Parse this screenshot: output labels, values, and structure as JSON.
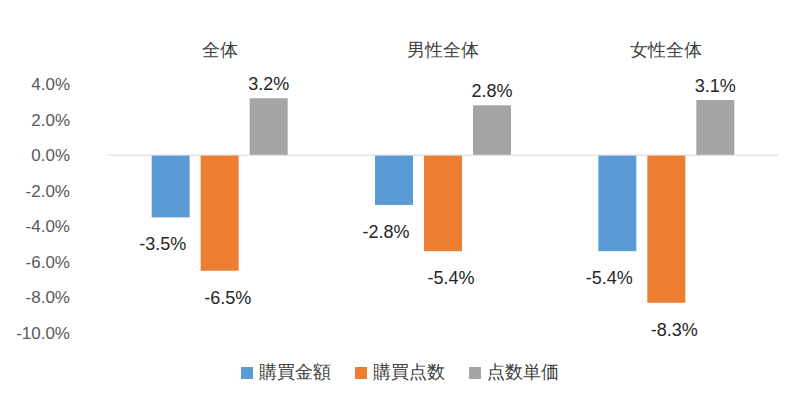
{
  "chart_data": {
    "type": "bar",
    "categories": [
      "全体",
      "男性全体",
      "女性全体"
    ],
    "series": [
      {
        "name": "購買金額",
        "color": "#5b9bd5",
        "values": [
          -3.5,
          -2.8,
          -5.4
        ],
        "value_labels": [
          "-3.5%",
          "-2.8%",
          "-5.4%"
        ]
      },
      {
        "name": "購買点数",
        "color": "#ed7d31",
        "values": [
          -6.5,
          -5.4,
          -8.3
        ],
        "value_labels": [
          "-6.5%",
          "-5.4%",
          "-8.3%"
        ]
      },
      {
        "name": "点数単価",
        "color": "#a5a5a5",
        "values": [
          3.2,
          2.8,
          3.1
        ],
        "value_labels": [
          "3.2%",
          "2.8%",
          "3.1%"
        ]
      }
    ],
    "ylim": [
      -10,
      4
    ],
    "yticks": [
      {
        "value": -10,
        "label": "-10.0%"
      },
      {
        "value": -8,
        "label": "-8.0%"
      },
      {
        "value": -6,
        "label": "-6.0%"
      },
      {
        "value": -4,
        "label": "-4.0%"
      },
      {
        "value": -2,
        "label": "-2.0%"
      },
      {
        "value": 0,
        "label": "0.0%"
      },
      {
        "value": 2,
        "label": "2.0%"
      },
      {
        "value": 4,
        "label": "4.0%"
      }
    ],
    "grid": false,
    "legend": "bottom",
    "data_labels": true
  }
}
